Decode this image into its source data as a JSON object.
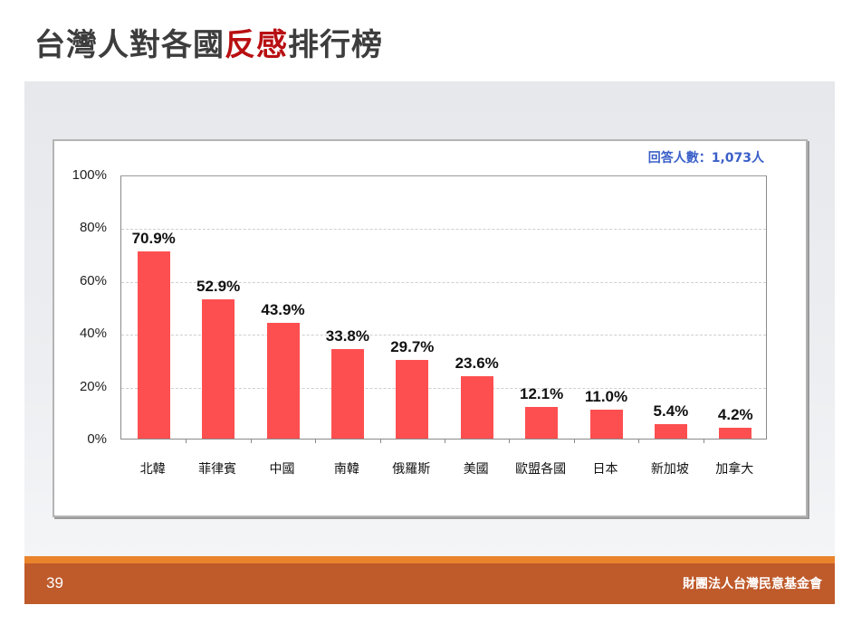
{
  "slide": {
    "title_part1": "台灣人對各國",
    "title_highlight": "反感",
    "title_part2": "排行榜",
    "respondents": "回答人數：1,073人",
    "page_number": "39",
    "organization": "財團法人台灣民意基金會"
  },
  "colors": {
    "bar": "#fe4f50",
    "title_highlight": "#b80f12",
    "footer": "#bf5a2b",
    "footer_line": "#e9842c",
    "respondents": "#3a5fc8"
  },
  "chart_data": {
    "type": "bar",
    "title": "台灣人對各國反感排行榜",
    "xlabel": "",
    "ylabel": "",
    "ylim": [
      0,
      100
    ],
    "yticks": [
      "0%",
      "20%",
      "40%",
      "60%",
      "80%",
      "100%"
    ],
    "grid": true,
    "legend": null,
    "annotation": "回答人數：1,073人",
    "categories": [
      "北韓",
      "菲律賓",
      "中國",
      "南韓",
      "俄羅斯",
      "美國",
      "歐盟各國",
      "日本",
      "新加坡",
      "加拿大"
    ],
    "values": [
      70.9,
      52.9,
      43.9,
      33.8,
      29.7,
      23.6,
      12.1,
      11.0,
      5.4,
      4.2
    ],
    "value_labels": [
      "70.9%",
      "52.9%",
      "43.9%",
      "33.8%",
      "29.7%",
      "23.6%",
      "12.1%",
      "11.0%",
      "5.4%",
      "4.2%"
    ]
  }
}
